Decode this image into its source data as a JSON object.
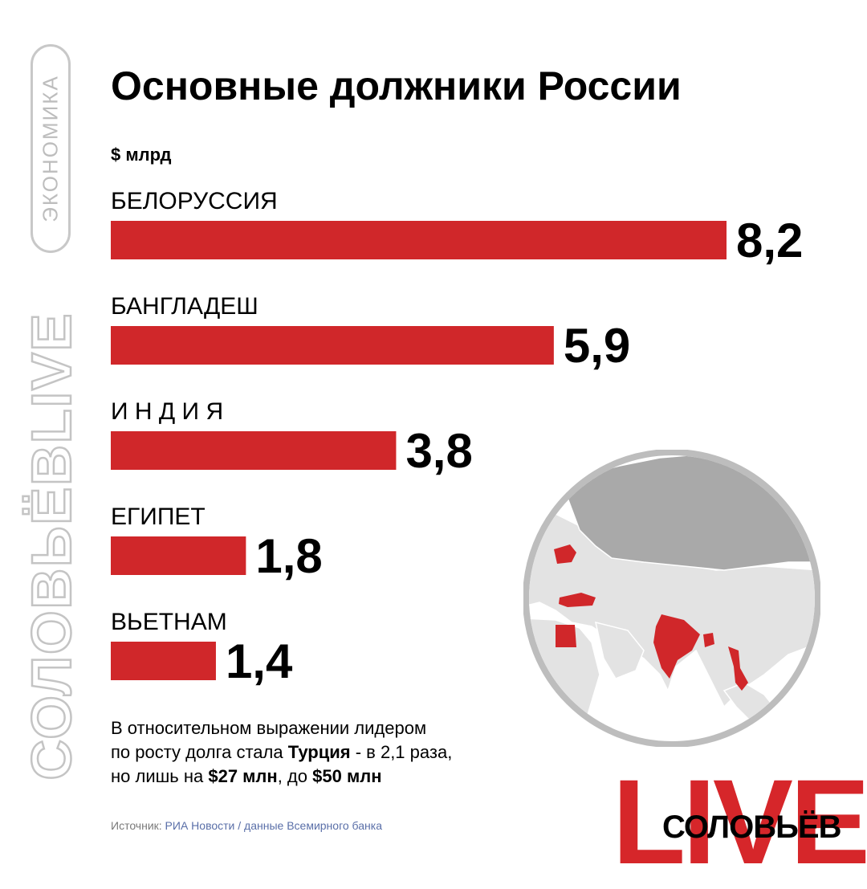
{
  "rail": {
    "category": "ЭКОНОМИКА",
    "brand": "СОЛОВЬЁВLIVE"
  },
  "title": "Основные должники России",
  "unit": "$ млрд",
  "chart_data": {
    "type": "bar",
    "orientation": "horizontal",
    "categories": [
      "БЕЛОРУССИЯ",
      "БАНГЛАДЕШ",
      "И Н Д И Я",
      "ЕГИПЕТ",
      "ВЬЕТНАМ"
    ],
    "values": [
      8.2,
      5.9,
      3.8,
      1.8,
      1.4
    ],
    "value_labels": [
      "8,2",
      "5,9",
      "3,8",
      "1,8",
      "1,4"
    ],
    "ylabel": "$ млрд",
    "xlim": [
      0,
      8.2
    ],
    "bar_color": "#d0272a",
    "grid": false,
    "legend": "none"
  },
  "note": {
    "line1": "В относительном выражении лидером",
    "line2a": "по росту долга стала ",
    "line2b": "Турция",
    "line2c": " - в 2,1 раза,",
    "line3a": "но лишь на ",
    "line3b": "$27 млн",
    "line3c": ", до ",
    "line3d": "$50 млн"
  },
  "source": {
    "label": "Источник: ",
    "text": "РИА Новости / данные Всемирного банка"
  },
  "map": {
    "highlight_color": "#d0272a",
    "russia_color": "#a9a9a9",
    "land_color": "#e3e3e3",
    "ocean_color": "#ffffff"
  },
  "logo": {
    "big": "LIVE",
    "name": "СОЛОВЬЁВ",
    "color": "#d6262a"
  }
}
